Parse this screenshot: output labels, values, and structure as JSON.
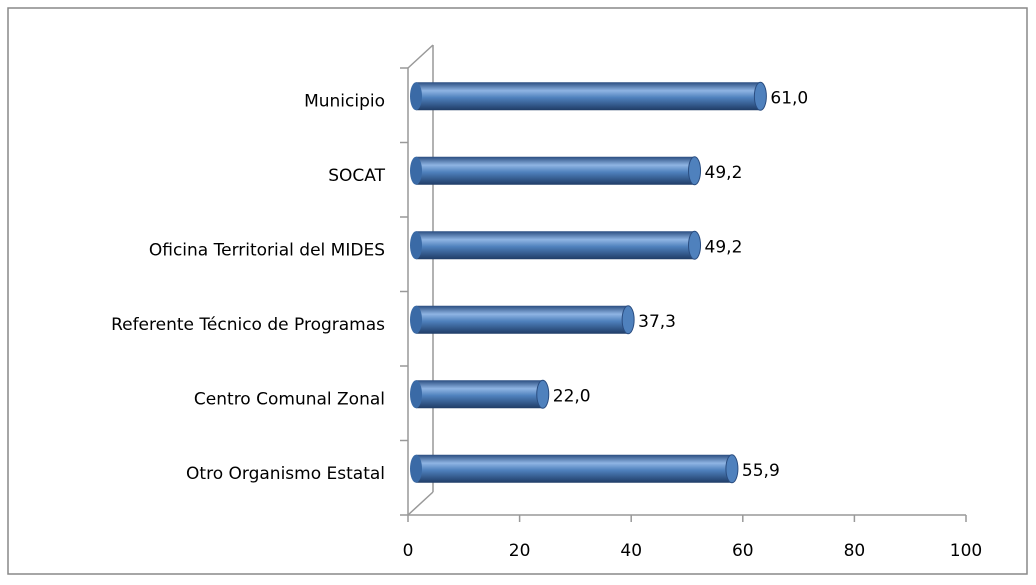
{
  "chart_data": {
    "type": "bar",
    "orientation": "horizontal",
    "categories": [
      "Municipio",
      "SOCAT",
      "Oficina Territorial del MIDES",
      "Referente Técnico de Programas",
      "Centro Comunal Zonal",
      "Otro Organismo Estatal"
    ],
    "values": [
      61.0,
      49.2,
      49.2,
      37.3,
      22.0,
      55.9
    ],
    "value_labels": [
      "61,0",
      "49,2",
      "49,2",
      "37,3",
      "22,0",
      "55,9"
    ],
    "color": "#4f81bd",
    "xlim": [
      0,
      100
    ],
    "xticks": [
      0,
      20,
      40,
      60,
      80,
      100
    ],
    "grid": false
  }
}
